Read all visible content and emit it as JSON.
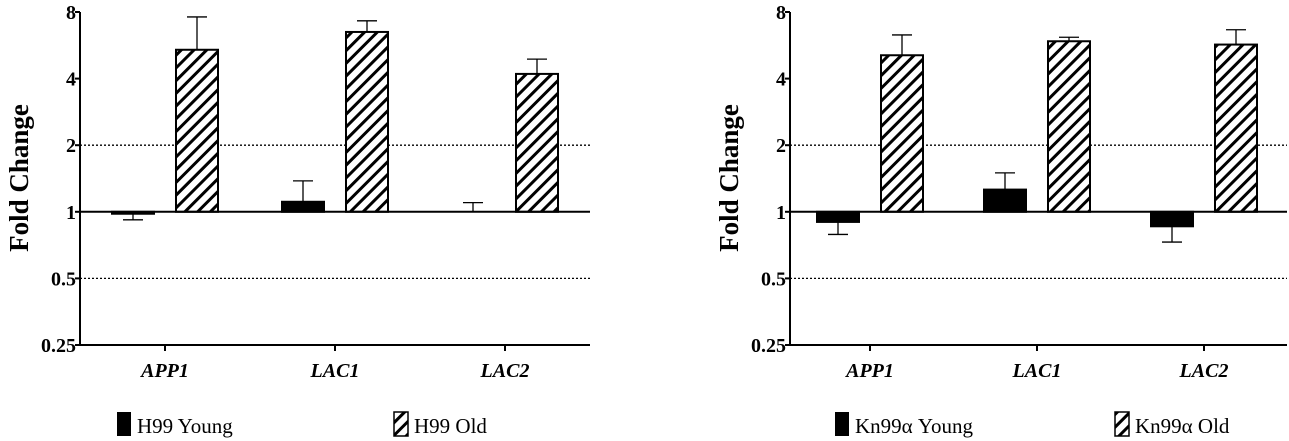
{
  "chart_data": [
    {
      "type": "bar",
      "ylabel": "Fold Change",
      "yscale": "log2",
      "ylim": [
        0.25,
        8
      ],
      "yticks": [
        "0.25",
        "0.5",
        "1",
        "2",
        "4",
        "8"
      ],
      "reference_lines": [
        0.5,
        2
      ],
      "baseline": 1,
      "categories": [
        "APP1",
        "LAC1",
        "LAC2"
      ],
      "legend_position": "bottom",
      "series": [
        {
          "name": "H99 Young",
          "fill": "solid",
          "color": "#000000",
          "values": [
            0.98,
            1.11,
            1.0
          ],
          "error_end": [
            0.92,
            1.38,
            1.1
          ]
        },
        {
          "name": "H99 Old",
          "fill": "hatched",
          "color": "#000000",
          "values": [
            5.4,
            6.5,
            4.2
          ],
          "error_end": [
            7.6,
            7.3,
            4.9
          ]
        }
      ]
    },
    {
      "type": "bar",
      "ylabel": "Fold Change",
      "yscale": "log2",
      "ylim": [
        0.25,
        8
      ],
      "yticks": [
        "0.25",
        "0.5",
        "1",
        "2",
        "4",
        "8"
      ],
      "reference_lines": [
        0.5,
        2
      ],
      "baseline": 1,
      "categories": [
        "APP1",
        "LAC1",
        "LAC2"
      ],
      "legend_position": "bottom",
      "series": [
        {
          "name": "Kn99α Young",
          "fill": "solid",
          "color": "#000000",
          "values": [
            0.9,
            1.26,
            0.86
          ],
          "error_end": [
            0.79,
            1.5,
            0.73
          ]
        },
        {
          "name": "Kn99α Old",
          "fill": "hatched",
          "color": "#000000",
          "values": [
            5.1,
            5.9,
            5.7
          ],
          "error_end": [
            6.3,
            6.15,
            6.65
          ]
        }
      ]
    }
  ]
}
